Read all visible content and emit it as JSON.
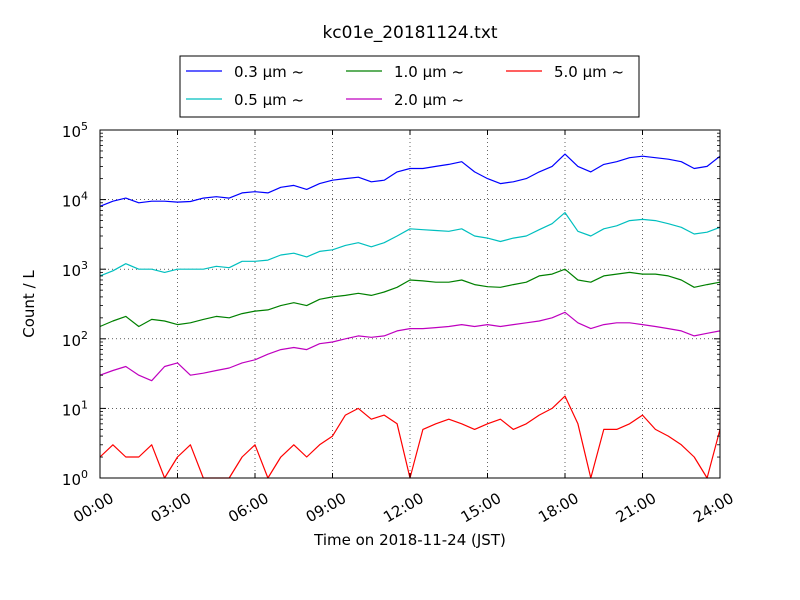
{
  "chart_data": {
    "type": "line",
    "title": "kc01e_20181124.txt",
    "xlabel": "Time on 2018-11-24 (JST)",
    "ylabel": "Count / L",
    "y_scale": "log",
    "ylim": [
      1,
      100000
    ],
    "xlim": [
      "00:00",
      "24:00"
    ],
    "grid": true,
    "legend_position": "top-center",
    "x_ticks": [
      "00:00",
      "03:00",
      "06:00",
      "09:00",
      "12:00",
      "15:00",
      "18:00",
      "21:00",
      "24:00"
    ],
    "y_ticks": [
      {
        "base": "10",
        "exp": "0",
        "value": 1
      },
      {
        "base": "10",
        "exp": "1",
        "value": 10
      },
      {
        "base": "10",
        "exp": "2",
        "value": 100
      },
      {
        "base": "10",
        "exp": "3",
        "value": 1000
      },
      {
        "base": "10",
        "exp": "4",
        "value": 10000
      },
      {
        "base": "10",
        "exp": "5",
        "value": 100000
      }
    ],
    "x": [
      "00:00",
      "00:30",
      "01:00",
      "01:30",
      "02:00",
      "02:30",
      "03:00",
      "03:30",
      "04:00",
      "04:30",
      "05:00",
      "05:30",
      "06:00",
      "06:30",
      "07:00",
      "07:30",
      "08:00",
      "08:30",
      "09:00",
      "09:30",
      "10:00",
      "10:30",
      "11:00",
      "11:30",
      "12:00",
      "12:30",
      "13:00",
      "13:30",
      "14:00",
      "14:30",
      "15:00",
      "15:30",
      "16:00",
      "16:30",
      "17:00",
      "17:30",
      "18:00",
      "18:30",
      "19:00",
      "19:30",
      "20:00",
      "20:30",
      "21:00",
      "21:30",
      "22:00",
      "22:30",
      "23:00",
      "23:30",
      "24:00"
    ],
    "series": [
      {
        "name": "0.3 μm ~",
        "color": "#0000ff",
        "values": [
          8000,
          9500,
          10500,
          9000,
          9500,
          9500,
          9200,
          9400,
          10500,
          11000,
          10500,
          12500,
          13000,
          12500,
          15000,
          16000,
          14000,
          17000,
          19000,
          20000,
          21000,
          18000,
          19000,
          25000,
          28000,
          28000,
          30000,
          32000,
          35000,
          25000,
          20000,
          17000,
          18000,
          20000,
          25000,
          30000,
          45000,
          30000,
          25000,
          32000,
          35000,
          40000,
          42000,
          40000,
          38000,
          35000,
          28000,
          30000,
          42000
        ]
      },
      {
        "name": "0.5 μm ~",
        "color": "#00bfbf",
        "values": [
          800,
          950,
          1200,
          1000,
          1000,
          900,
          1000,
          1000,
          1000,
          1100,
          1050,
          1300,
          1300,
          1350,
          1600,
          1700,
          1500,
          1800,
          1900,
          2200,
          2400,
          2100,
          2400,
          3000,
          3800,
          3700,
          3600,
          3500,
          3800,
          3000,
          2800,
          2500,
          2800,
          3000,
          3700,
          4500,
          6500,
          3500,
          3000,
          3800,
          4200,
          5000,
          5200,
          5000,
          4500,
          4000,
          3200,
          3400,
          4000
        ]
      },
      {
        "name": "1.0 μm ~",
        "color": "#008000",
        "values": [
          150,
          180,
          210,
          150,
          190,
          180,
          160,
          170,
          190,
          210,
          200,
          230,
          250,
          260,
          300,
          330,
          300,
          370,
          400,
          420,
          450,
          420,
          470,
          550,
          700,
          680,
          650,
          650,
          700,
          600,
          560,
          550,
          600,
          650,
          800,
          850,
          1000,
          700,
          650,
          800,
          850,
          900,
          850,
          850,
          800,
          700,
          550,
          600,
          650
        ]
      },
      {
        "name": "2.0 μm ~",
        "color": "#bf00bf",
        "values": [
          30,
          35,
          40,
          30,
          25,
          40,
          45,
          30,
          32,
          35,
          38,
          45,
          50,
          60,
          70,
          75,
          70,
          85,
          90,
          100,
          110,
          105,
          110,
          130,
          140,
          140,
          145,
          150,
          160,
          150,
          160,
          150,
          160,
          170,
          180,
          200,
          240,
          170,
          140,
          160,
          170,
          170,
          160,
          150,
          140,
          130,
          110,
          120,
          130
        ]
      },
      {
        "name": "5.0 μm ~",
        "color": "#ff0000",
        "values": [
          2,
          3,
          2,
          2,
          3,
          1,
          2,
          3,
          1,
          1,
          1,
          2,
          3,
          1,
          2,
          3,
          2,
          3,
          4,
          8,
          10,
          7,
          8,
          6,
          1,
          5,
          6,
          7,
          6,
          5,
          6,
          7,
          5,
          6,
          8,
          10,
          15,
          6,
          1,
          5,
          5,
          6,
          8,
          5,
          4,
          3,
          2,
          1,
          5
        ]
      }
    ]
  }
}
